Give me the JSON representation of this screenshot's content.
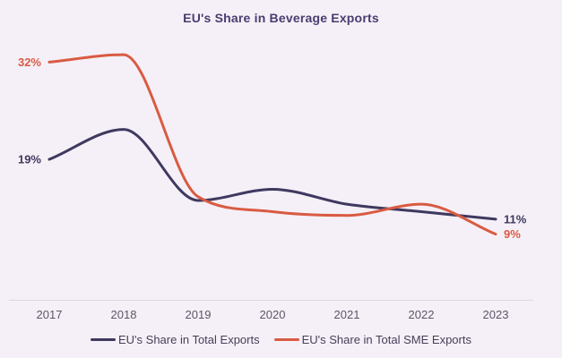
{
  "page": {
    "background": "#f5f0f7"
  },
  "chart_data": {
    "type": "line",
    "title": "EU's Share in Beverage Exports",
    "title_color": "#4a3d70",
    "categories": [
      "2017",
      "2018",
      "2019",
      "2020",
      "2021",
      "2022",
      "2023"
    ],
    "series": [
      {
        "name": "EU's Share in Total Exports",
        "color": "#3f3960",
        "values": [
          19,
          23,
          13.5,
          15,
          13,
          12,
          11
        ],
        "start_label": "19%",
        "end_label": "11%"
      },
      {
        "name": "EU's Share in Total SME Exports",
        "color": "#d95b42",
        "values": [
          32,
          33,
          14,
          12,
          11.5,
          13,
          9
        ],
        "start_label": "32%",
        "end_label": "9%"
      }
    ],
    "xlabel": "",
    "ylabel": "",
    "ylim": [
      5,
      36
    ],
    "grid": false,
    "smoothing": "monotone",
    "line_width": 3,
    "legend_position": "bottom",
    "axis_line_color": "#dbd5e0",
    "tick_color": "#5b5668",
    "legend_text_color": "#453f58",
    "tick_font_size": 13,
    "value_label_font_size": 13
  }
}
